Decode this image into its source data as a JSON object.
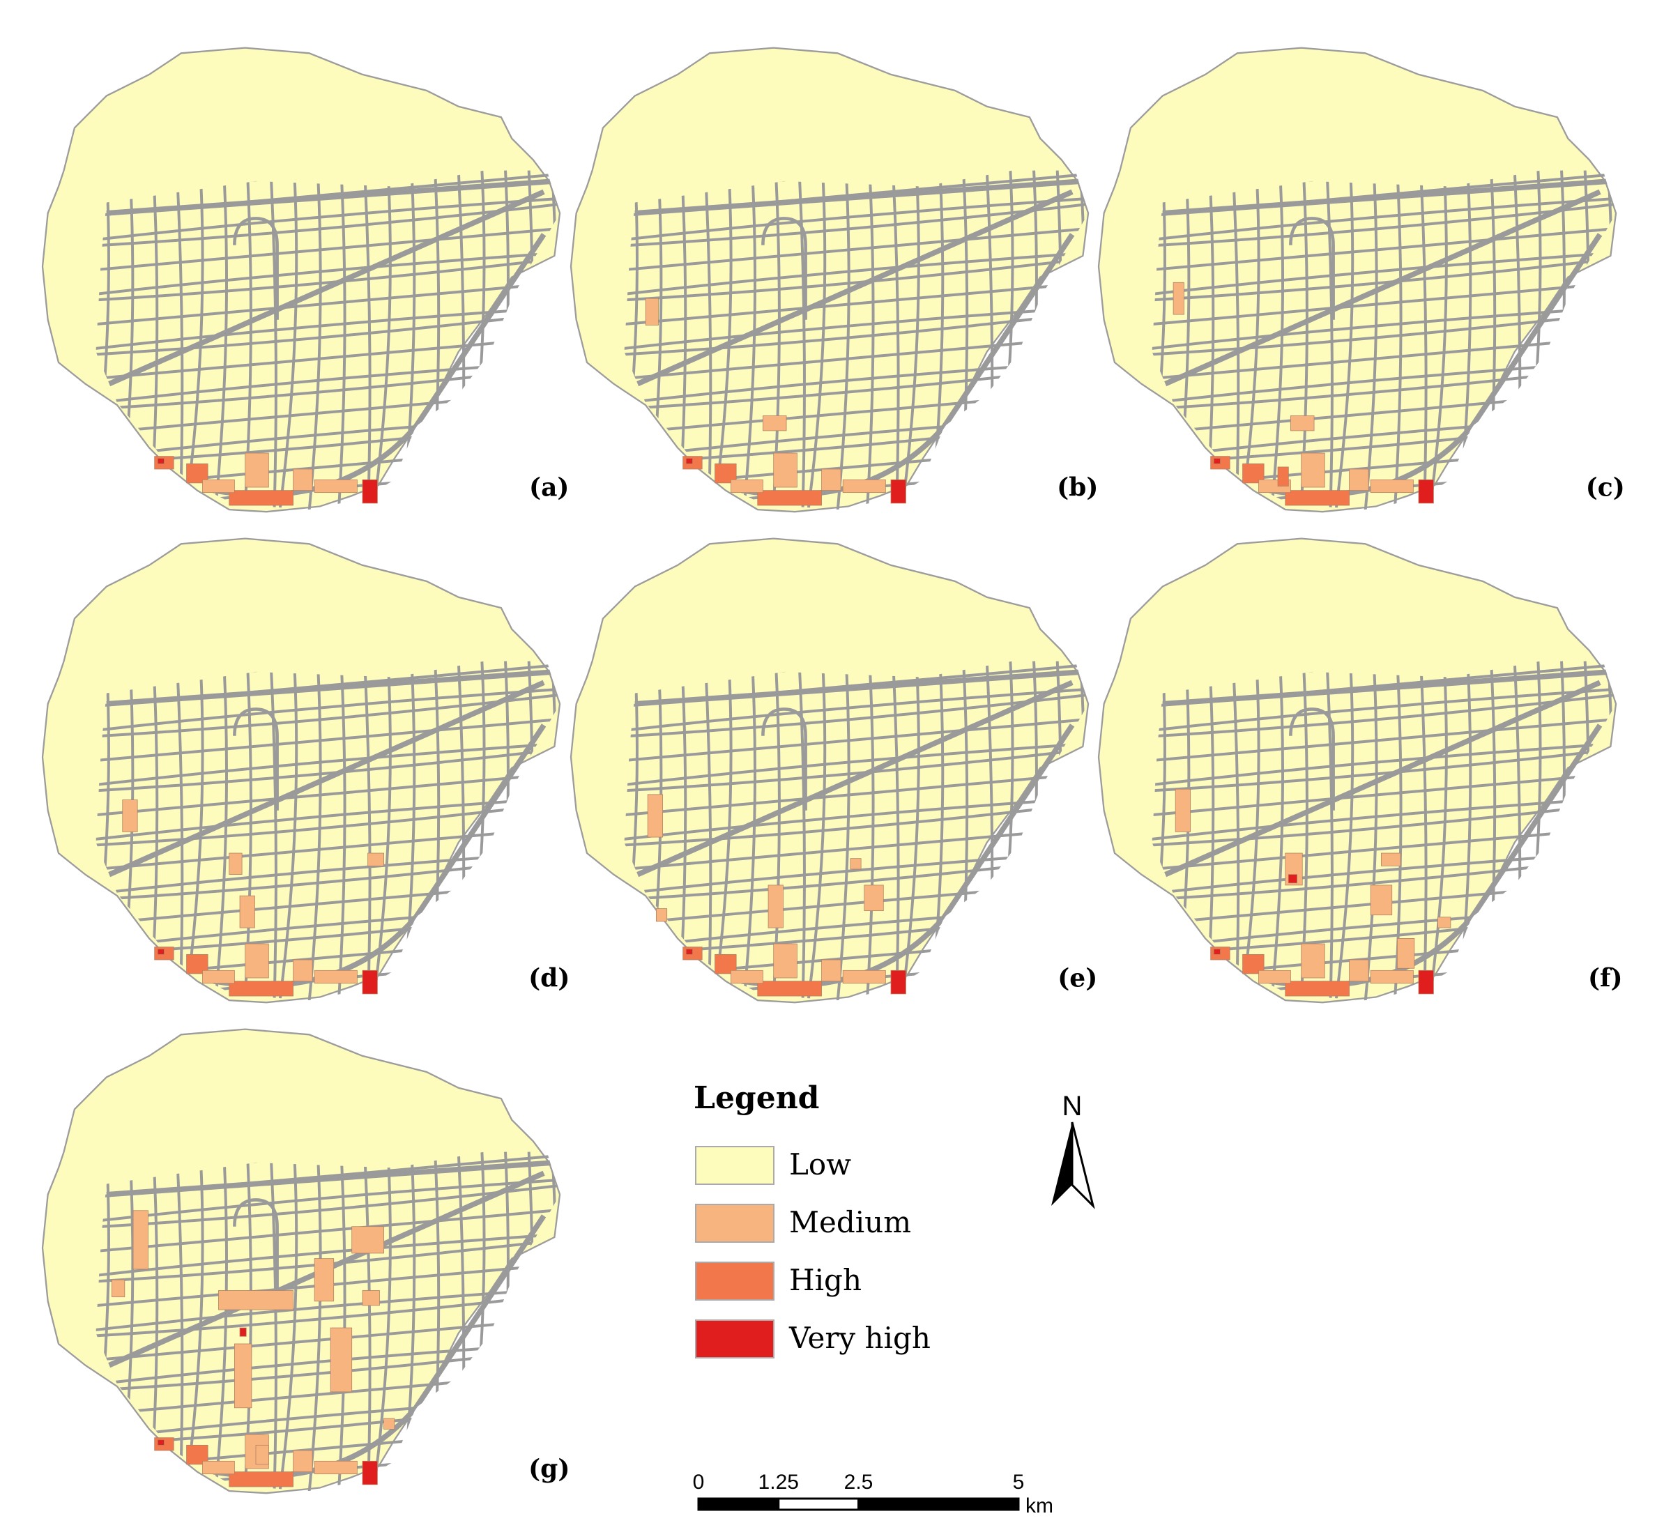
{
  "panels": [
    {
      "label": "(a)"
    },
    {
      "label": "(b)"
    },
    {
      "label": "(c)"
    },
    {
      "label": "(d)"
    },
    {
      "label": "(e)"
    },
    {
      "label": "(f)"
    },
    {
      "label": "(g)"
    }
  ],
  "legend": {
    "title": "Legend",
    "items": [
      {
        "label": "Low",
        "color": "#fdfcbd"
      },
      {
        "label": "Medium",
        "color": "#f8b47e"
      },
      {
        "label": "High",
        "color": "#f2774b"
      },
      {
        "label": "Very high",
        "color": "#e01e1e"
      }
    ]
  },
  "north_arrow": "N",
  "scale_bar": {
    "ticks": [
      0,
      1.25,
      2.5,
      5
    ],
    "unit": "km"
  }
}
